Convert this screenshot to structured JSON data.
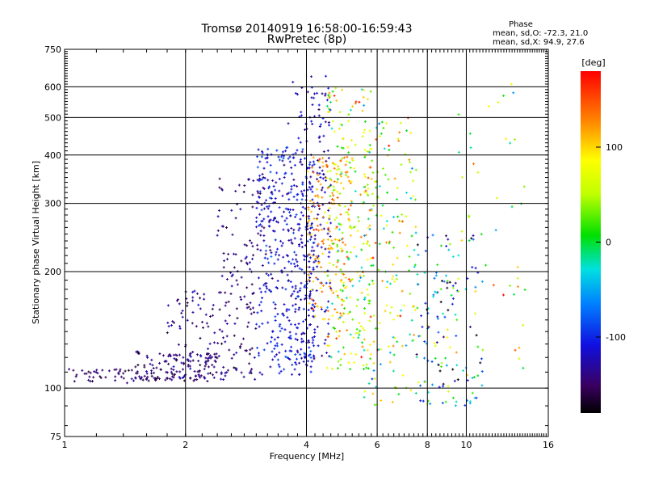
{
  "chart_data": {
    "type": "scatter",
    "title": "Tromsø 20140919 16:58:00-16:59:43",
    "subtitle": "RwPretec (8p)",
    "xlabel": "Frequency [MHz]",
    "ylabel": "Stationary phase Virtual Height [km]",
    "x_scale": "log",
    "y_scale": "log",
    "xlim": [
      1,
      16
    ],
    "ylim": [
      75,
      750
    ],
    "xticks": [
      1,
      2,
      4,
      6,
      8,
      10,
      16
    ],
    "yticks": [
      75,
      100,
      200,
      300,
      400,
      500,
      600,
      750
    ],
    "xgrid": [
      2,
      4,
      6,
      8,
      10
    ],
    "ygrid": [
      100,
      200,
      300,
      400,
      500,
      600
    ],
    "grid": true,
    "phase_stats": {
      "heading": "Phase",
      "line_o": "mean, sd,O: -72.3, 21.0",
      "line_x": "mean, sd,X:  94.9, 27.6"
    },
    "colorbar": {
      "label": "[deg]",
      "min": -180,
      "max": 180,
      "ticks": [
        100,
        0,
        -100
      ],
      "colormap": "rainbow"
    },
    "clusters": [
      {
        "fmin": 1.0,
        "fmax": 1.8,
        "hmin": 103,
        "hmax": 112,
        "phase": -150,
        "spread": 15,
        "n": 60
      },
      {
        "fmin": 1.5,
        "fmax": 2.4,
        "hmin": 104,
        "hmax": 125,
        "phase": -145,
        "spread": 20,
        "n": 110
      },
      {
        "fmin": 1.8,
        "fmax": 3.0,
        "hmin": 105,
        "hmax": 180,
        "phase": -140,
        "spread": 25,
        "n": 160
      },
      {
        "fmin": 2.4,
        "fmax": 3.3,
        "hmin": 180,
        "hmax": 360,
        "phase": -140,
        "spread": 20,
        "n": 90
      },
      {
        "fmin": 3.0,
        "fmax": 4.2,
        "hmin": 108,
        "hmax": 420,
        "phase": -110,
        "spread": 25,
        "n": 380
      },
      {
        "fmin": 3.6,
        "fmax": 4.6,
        "hmin": 115,
        "hmax": 640,
        "phase": -120,
        "spread": 30,
        "n": 220
      },
      {
        "fmin": 4.0,
        "fmax": 5.2,
        "hmin": 150,
        "hmax": 400,
        "phase": 120,
        "spread": 35,
        "n": 150
      },
      {
        "fmin": 4.5,
        "fmax": 5.8,
        "hmin": 110,
        "hmax": 600,
        "phase": 60,
        "spread": 90,
        "n": 260
      },
      {
        "fmin": 5.5,
        "fmax": 7.5,
        "hmin": 90,
        "hmax": 500,
        "phase": 40,
        "spread": 110,
        "n": 180
      },
      {
        "fmin": 7.5,
        "fmax": 11.0,
        "hmin": 90,
        "hmax": 250,
        "phase": -60,
        "spread": 120,
        "n": 150
      },
      {
        "fmin": 9.5,
        "fmax": 14.0,
        "hmin": 110,
        "hmax": 620,
        "phase": 60,
        "spread": 110,
        "n": 40
      }
    ]
  }
}
